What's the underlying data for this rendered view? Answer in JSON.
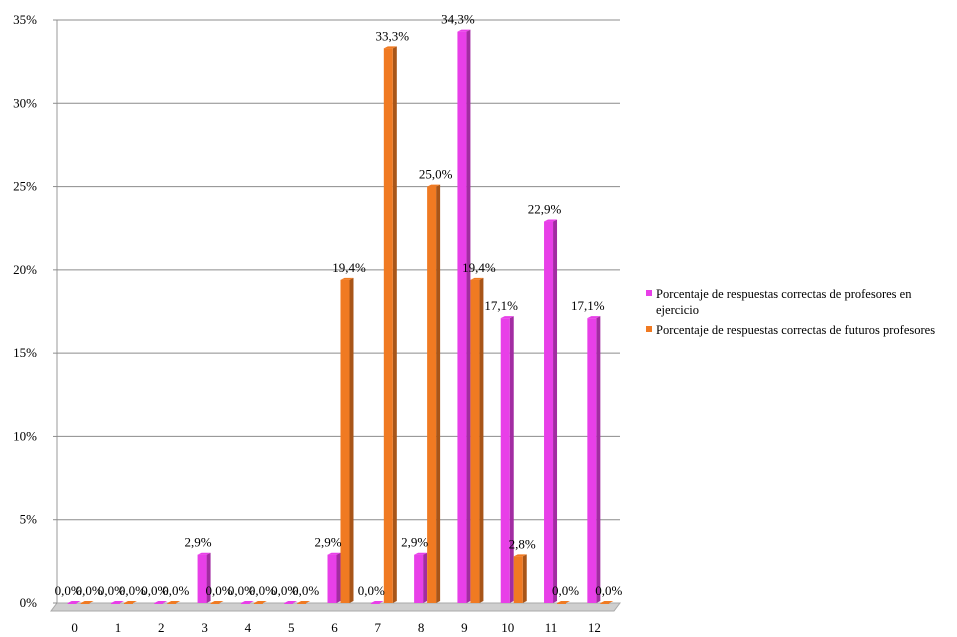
{
  "chart_data": {
    "type": "bar",
    "categories": [
      "0",
      "1",
      "2",
      "3",
      "4",
      "5",
      "6",
      "7",
      "8",
      "9",
      "10",
      "11",
      "12"
    ],
    "series": [
      {
        "name": "Porcentaje de respuestas correctas de profesores en ejercicio",
        "color": "#e83fe8",
        "values": [
          0.0,
          0.0,
          0.0,
          2.9,
          0.0,
          0.0,
          2.9,
          0.0,
          2.9,
          34.3,
          17.1,
          22.9,
          17.1
        ],
        "labels": [
          "0,0%",
          "0,0%",
          "0,0%",
          "2,9%",
          "0,0%",
          "0,0%",
          "2,9%",
          "0,0%",
          "2,9%",
          "34,3%",
          "17,1%",
          "22,9%",
          "17,1%"
        ]
      },
      {
        "name": "Porcentaje de respuestas correctas de futuros profesores",
        "color": "#f07a22",
        "values": [
          0.0,
          0.0,
          0.0,
          0.0,
          0.0,
          0.0,
          19.4,
          33.3,
          25.0,
          19.4,
          2.8,
          0.0,
          0.0
        ],
        "labels": [
          "0,0%",
          "0,0%",
          "0,0%",
          "0,0%",
          "0,0%",
          "0,0%",
          "19,4%",
          "33,3%",
          "25,0%",
          "19,4%",
          "2,8%",
          "0,0%",
          "0,0%"
        ]
      }
    ],
    "ylim": [
      0,
      35
    ],
    "yticks": [
      0,
      5,
      10,
      15,
      20,
      25,
      30,
      35
    ],
    "ytick_labels": [
      "0%",
      "5%",
      "10%",
      "15%",
      "20%",
      "25%",
      "30%",
      "35%"
    ],
    "grid": true,
    "legend_position": "right",
    "title": "",
    "xlabel": "",
    "ylabel": ""
  }
}
